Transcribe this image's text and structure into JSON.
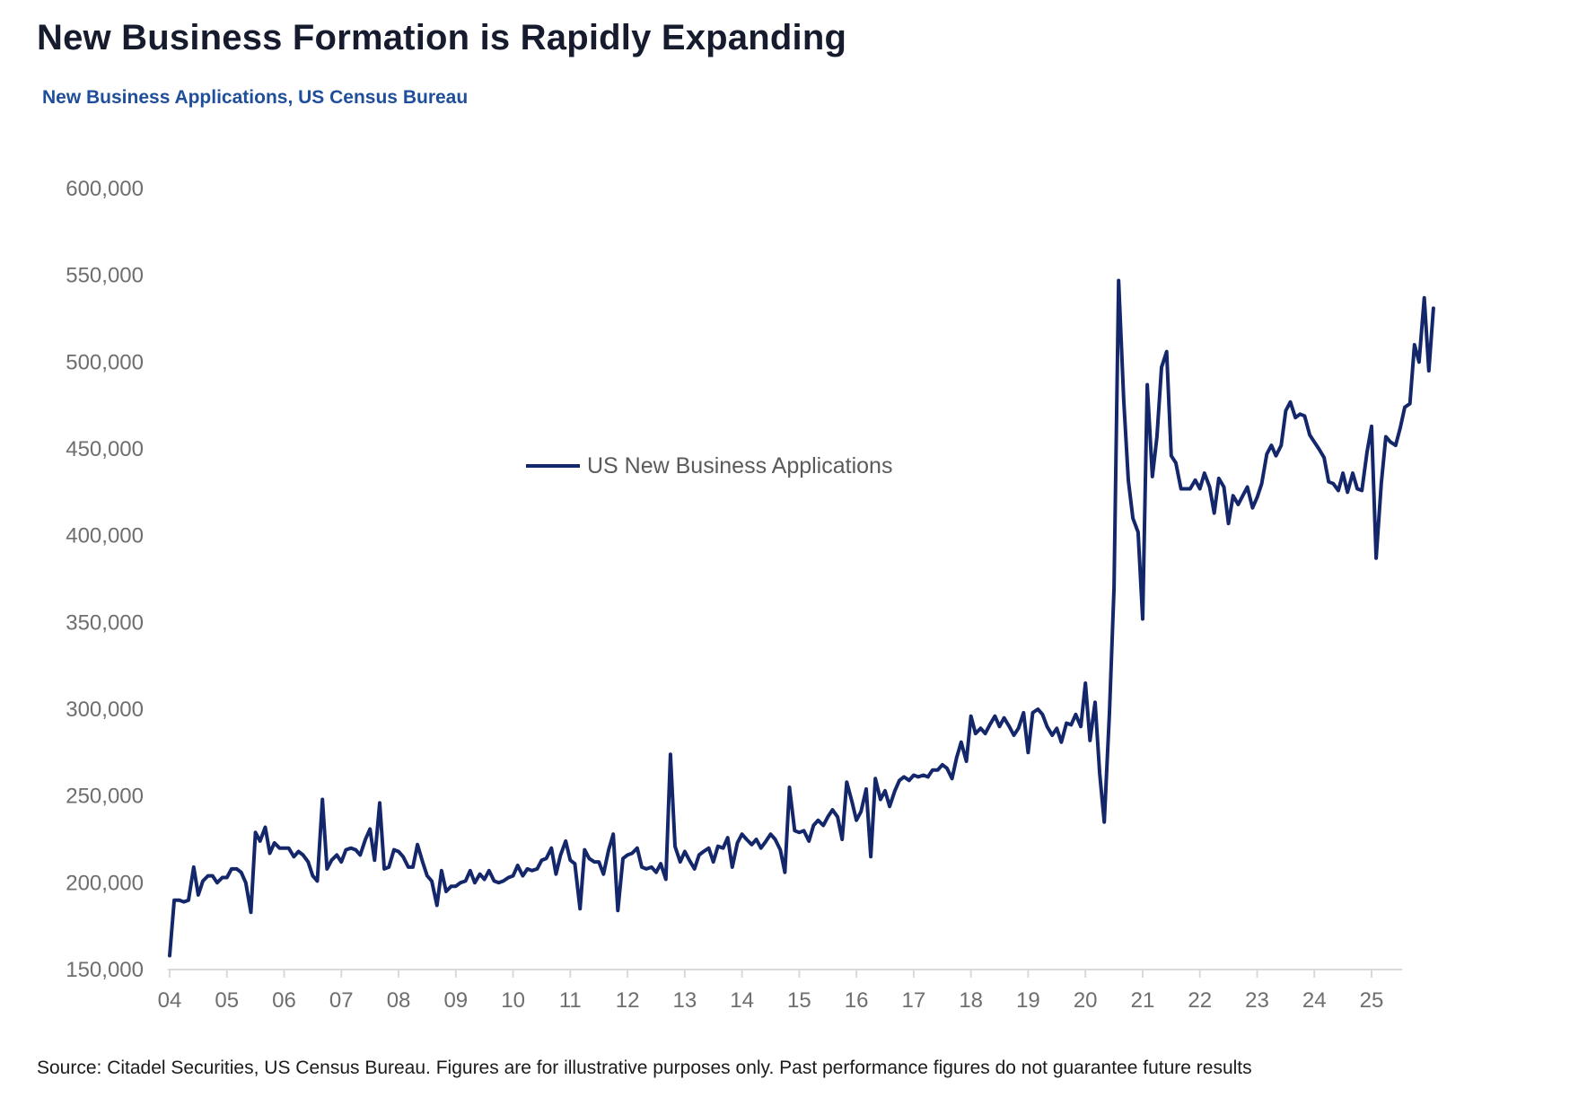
{
  "header": {
    "title": "New Business Formation is Rapidly Expanding",
    "subtitle": "New Business Applications, US Census Bureau"
  },
  "footer": {
    "source": "Source: Citadel Securities, US Census Bureau. Figures are for illustrative purposes only. Past performance figures do not guarantee future results"
  },
  "colors": {
    "line": "#14276b",
    "title": "#161b2e",
    "subtitle": "#1f4e9a",
    "axis": "#d9d9d9",
    "tick_text": "#6e6e6e"
  },
  "chart_data": {
    "type": "line",
    "title": "",
    "xlabel": "",
    "ylabel": "",
    "ylim": [
      150000,
      600000
    ],
    "y_ticks": [
      "150,000",
      "200,000",
      "250,000",
      "300,000",
      "350,000",
      "400,000",
      "450,000",
      "500,000",
      "550,000",
      "600,000"
    ],
    "y_tick_values": [
      150000,
      200000,
      250000,
      300000,
      350000,
      400000,
      450000,
      500000,
      550000,
      600000
    ],
    "x_ticks": [
      "04",
      "05",
      "06",
      "07",
      "08",
      "09",
      "10",
      "11",
      "12",
      "13",
      "14",
      "15",
      "16",
      "17",
      "18",
      "19",
      "20",
      "21",
      "22",
      "23",
      "24",
      "25"
    ],
    "x_tick_values": [
      2004,
      2005,
      2006,
      2007,
      2008,
      2009,
      2010,
      2011,
      2012,
      2013,
      2014,
      2015,
      2016,
      2017,
      2018,
      2019,
      2020,
      2021,
      2022,
      2023,
      2024,
      2025
    ],
    "xlim": [
      2004,
      2025.6
    ],
    "grid": false,
    "legend_position": "center",
    "series": [
      {
        "name": "US New Business Applications",
        "color": "#14276b",
        "points": [
          [
            2004.0,
            158000
          ],
          [
            2004.08,
            190000
          ],
          [
            2004.17,
            190000
          ],
          [
            2004.25,
            189000
          ],
          [
            2004.33,
            190000
          ],
          [
            2004.42,
            209000
          ],
          [
            2004.5,
            193000
          ],
          [
            2004.58,
            201000
          ],
          [
            2004.67,
            204000
          ],
          [
            2004.75,
            204000
          ],
          [
            2004.83,
            200000
          ],
          [
            2004.92,
            203000
          ],
          [
            2005.0,
            203000
          ],
          [
            2005.08,
            208000
          ],
          [
            2005.17,
            208000
          ],
          [
            2005.25,
            206000
          ],
          [
            2005.33,
            200000
          ],
          [
            2005.42,
            183000
          ],
          [
            2005.5,
            229000
          ],
          [
            2005.58,
            224000
          ],
          [
            2005.67,
            232000
          ],
          [
            2005.75,
            217000
          ],
          [
            2005.83,
            223000
          ],
          [
            2005.92,
            220000
          ],
          [
            2006.0,
            220000
          ],
          [
            2006.08,
            220000
          ],
          [
            2006.17,
            215000
          ],
          [
            2006.25,
            218000
          ],
          [
            2006.33,
            216000
          ],
          [
            2006.42,
            212000
          ],
          [
            2006.5,
            204000
          ],
          [
            2006.58,
            201000
          ],
          [
            2006.67,
            248000
          ],
          [
            2006.75,
            208000
          ],
          [
            2006.83,
            213000
          ],
          [
            2006.92,
            216000
          ],
          [
            2007.0,
            212000
          ],
          [
            2007.08,
            219000
          ],
          [
            2007.17,
            220000
          ],
          [
            2007.25,
            219000
          ],
          [
            2007.33,
            216000
          ],
          [
            2007.42,
            225000
          ],
          [
            2007.5,
            231000
          ],
          [
            2007.58,
            213000
          ],
          [
            2007.67,
            246000
          ],
          [
            2007.75,
            208000
          ],
          [
            2007.83,
            209000
          ],
          [
            2007.92,
            219000
          ],
          [
            2008.0,
            218000
          ],
          [
            2008.08,
            215000
          ],
          [
            2008.17,
            209000
          ],
          [
            2008.25,
            209000
          ],
          [
            2008.33,
            222000
          ],
          [
            2008.42,
            212000
          ],
          [
            2008.5,
            204000
          ],
          [
            2008.58,
            201000
          ],
          [
            2008.67,
            187000
          ],
          [
            2008.75,
            207000
          ],
          [
            2008.83,
            195000
          ],
          [
            2008.92,
            198000
          ],
          [
            2009.0,
            198000
          ],
          [
            2009.08,
            200000
          ],
          [
            2009.17,
            201000
          ],
          [
            2009.25,
            207000
          ],
          [
            2009.33,
            200000
          ],
          [
            2009.42,
            205000
          ],
          [
            2009.5,
            202000
          ],
          [
            2009.58,
            207000
          ],
          [
            2009.67,
            201000
          ],
          [
            2009.75,
            200000
          ],
          [
            2009.83,
            201000
          ],
          [
            2009.92,
            203000
          ],
          [
            2010.0,
            204000
          ],
          [
            2010.08,
            210000
          ],
          [
            2010.17,
            204000
          ],
          [
            2010.25,
            208000
          ],
          [
            2010.33,
            207000
          ],
          [
            2010.42,
            208000
          ],
          [
            2010.5,
            213000
          ],
          [
            2010.58,
            214000
          ],
          [
            2010.67,
            220000
          ],
          [
            2010.75,
            205000
          ],
          [
            2010.83,
            216000
          ],
          [
            2010.92,
            224000
          ],
          [
            2011.0,
            213000
          ],
          [
            2011.08,
            211000
          ],
          [
            2011.17,
            185000
          ],
          [
            2011.25,
            219000
          ],
          [
            2011.33,
            214000
          ],
          [
            2011.42,
            212000
          ],
          [
            2011.5,
            212000
          ],
          [
            2011.58,
            205000
          ],
          [
            2011.67,
            219000
          ],
          [
            2011.75,
            228000
          ],
          [
            2011.83,
            184000
          ],
          [
            2011.92,
            214000
          ],
          [
            2012.0,
            216000
          ],
          [
            2012.08,
            217000
          ],
          [
            2012.17,
            220000
          ],
          [
            2012.25,
            209000
          ],
          [
            2012.33,
            208000
          ],
          [
            2012.42,
            209000
          ],
          [
            2012.5,
            206000
          ],
          [
            2012.58,
            211000
          ],
          [
            2012.67,
            202000
          ],
          [
            2012.75,
            274000
          ],
          [
            2012.83,
            221000
          ],
          [
            2012.92,
            212000
          ],
          [
            2013.0,
            218000
          ],
          [
            2013.08,
            213000
          ],
          [
            2013.17,
            208000
          ],
          [
            2013.25,
            216000
          ],
          [
            2013.33,
            218000
          ],
          [
            2013.42,
            220000
          ],
          [
            2013.5,
            212000
          ],
          [
            2013.58,
            221000
          ],
          [
            2013.67,
            220000
          ],
          [
            2013.75,
            226000
          ],
          [
            2013.83,
            209000
          ],
          [
            2013.92,
            223000
          ],
          [
            2014.0,
            228000
          ],
          [
            2014.08,
            225000
          ],
          [
            2014.17,
            222000
          ],
          [
            2014.25,
            225000
          ],
          [
            2014.33,
            220000
          ],
          [
            2014.42,
            224000
          ],
          [
            2014.5,
            228000
          ],
          [
            2014.58,
            225000
          ],
          [
            2014.67,
            219000
          ],
          [
            2014.75,
            206000
          ],
          [
            2014.83,
            255000
          ],
          [
            2014.92,
            230000
          ],
          [
            2015.0,
            229000
          ],
          [
            2015.08,
            230000
          ],
          [
            2015.17,
            224000
          ],
          [
            2015.25,
            233000
          ],
          [
            2015.33,
            236000
          ],
          [
            2015.42,
            233000
          ],
          [
            2015.5,
            238000
          ],
          [
            2015.58,
            242000
          ],
          [
            2015.67,
            238000
          ],
          [
            2015.75,
            225000
          ],
          [
            2015.83,
            258000
          ],
          [
            2015.92,
            247000
          ],
          [
            2016.0,
            236000
          ],
          [
            2016.08,
            241000
          ],
          [
            2016.17,
            254000
          ],
          [
            2016.25,
            215000
          ],
          [
            2016.33,
            260000
          ],
          [
            2016.42,
            248000
          ],
          [
            2016.5,
            253000
          ],
          [
            2016.58,
            244000
          ],
          [
            2016.67,
            253000
          ],
          [
            2016.75,
            259000
          ],
          [
            2016.83,
            261000
          ],
          [
            2016.92,
            259000
          ],
          [
            2017.0,
            262000
          ],
          [
            2017.08,
            261000
          ],
          [
            2017.17,
            262000
          ],
          [
            2017.25,
            261000
          ],
          [
            2017.33,
            265000
          ],
          [
            2017.42,
            265000
          ],
          [
            2017.5,
            268000
          ],
          [
            2017.58,
            266000
          ],
          [
            2017.67,
            260000
          ],
          [
            2017.75,
            272000
          ],
          [
            2017.83,
            281000
          ],
          [
            2017.92,
            270000
          ],
          [
            2018.0,
            296000
          ],
          [
            2018.08,
            286000
          ],
          [
            2018.17,
            289000
          ],
          [
            2018.25,
            286000
          ],
          [
            2018.33,
            291000
          ],
          [
            2018.42,
            296000
          ],
          [
            2018.5,
            290000
          ],
          [
            2018.58,
            295000
          ],
          [
            2018.67,
            290000
          ],
          [
            2018.75,
            285000
          ],
          [
            2018.83,
            289000
          ],
          [
            2018.92,
            298000
          ],
          [
            2019.0,
            275000
          ],
          [
            2019.08,
            298000
          ],
          [
            2019.17,
            300000
          ],
          [
            2019.25,
            297000
          ],
          [
            2019.33,
            290000
          ],
          [
            2019.42,
            285000
          ],
          [
            2019.5,
            289000
          ],
          [
            2019.58,
            281000
          ],
          [
            2019.67,
            292000
          ],
          [
            2019.75,
            291000
          ],
          [
            2019.83,
            297000
          ],
          [
            2019.92,
            290000
          ],
          [
            2020.0,
            315000
          ],
          [
            2020.08,
            282000
          ],
          [
            2020.17,
            304000
          ],
          [
            2020.25,
            263000
          ],
          [
            2020.33,
            235000
          ],
          [
            2020.42,
            298000
          ],
          [
            2020.5,
            370000
          ],
          [
            2020.58,
            547000
          ],
          [
            2020.67,
            478000
          ],
          [
            2020.75,
            432000
          ],
          [
            2020.83,
            410000
          ],
          [
            2020.92,
            402000
          ],
          [
            2021.0,
            352000
          ],
          [
            2021.08,
            487000
          ],
          [
            2021.17,
            434000
          ],
          [
            2021.25,
            457000
          ],
          [
            2021.33,
            497000
          ],
          [
            2021.42,
            506000
          ],
          [
            2021.5,
            446000
          ],
          [
            2021.58,
            442000
          ],
          [
            2021.67,
            427000
          ],
          [
            2021.75,
            427000
          ],
          [
            2021.83,
            427000
          ],
          [
            2021.92,
            432000
          ],
          [
            2022.0,
            427000
          ],
          [
            2022.08,
            436000
          ],
          [
            2022.17,
            428000
          ],
          [
            2022.25,
            413000
          ],
          [
            2022.33,
            433000
          ],
          [
            2022.42,
            428000
          ],
          [
            2022.5,
            407000
          ],
          [
            2022.58,
            423000
          ],
          [
            2022.67,
            418000
          ],
          [
            2022.75,
            423000
          ],
          [
            2022.83,
            428000
          ],
          [
            2022.92,
            416000
          ],
          [
            2023.0,
            422000
          ],
          [
            2023.08,
            430000
          ],
          [
            2023.17,
            447000
          ],
          [
            2023.25,
            452000
          ],
          [
            2023.33,
            446000
          ],
          [
            2023.42,
            452000
          ],
          [
            2023.5,
            472000
          ],
          [
            2023.58,
            477000
          ],
          [
            2023.67,
            468000
          ],
          [
            2023.75,
            470000
          ],
          [
            2023.83,
            469000
          ],
          [
            2023.92,
            458000
          ],
          [
            2024.0,
            454000
          ],
          [
            2024.08,
            450000
          ],
          [
            2024.17,
            445000
          ],
          [
            2024.25,
            431000
          ],
          [
            2024.33,
            430000
          ],
          [
            2024.42,
            426000
          ],
          [
            2024.5,
            436000
          ],
          [
            2024.58,
            425000
          ],
          [
            2024.67,
            436000
          ],
          [
            2024.75,
            427000
          ],
          [
            2024.83,
            426000
          ],
          [
            2024.92,
            448000
          ],
          [
            2025.0,
            463000
          ],
          [
            2025.08,
            387000
          ],
          [
            2025.17,
            430000
          ],
          [
            2025.25,
            457000
          ],
          [
            2025.33,
            454000
          ],
          [
            2025.42,
            452000
          ],
          [
            2025.5,
            462000
          ],
          [
            2025.58,
            474000
          ],
          [
            2025.67,
            476000
          ],
          [
            2025.75,
            510000
          ],
          [
            2025.83,
            500000
          ],
          [
            2025.92,
            537000
          ],
          [
            2026.0,
            495000
          ],
          [
            2026.08,
            531000
          ]
        ]
      }
    ]
  }
}
